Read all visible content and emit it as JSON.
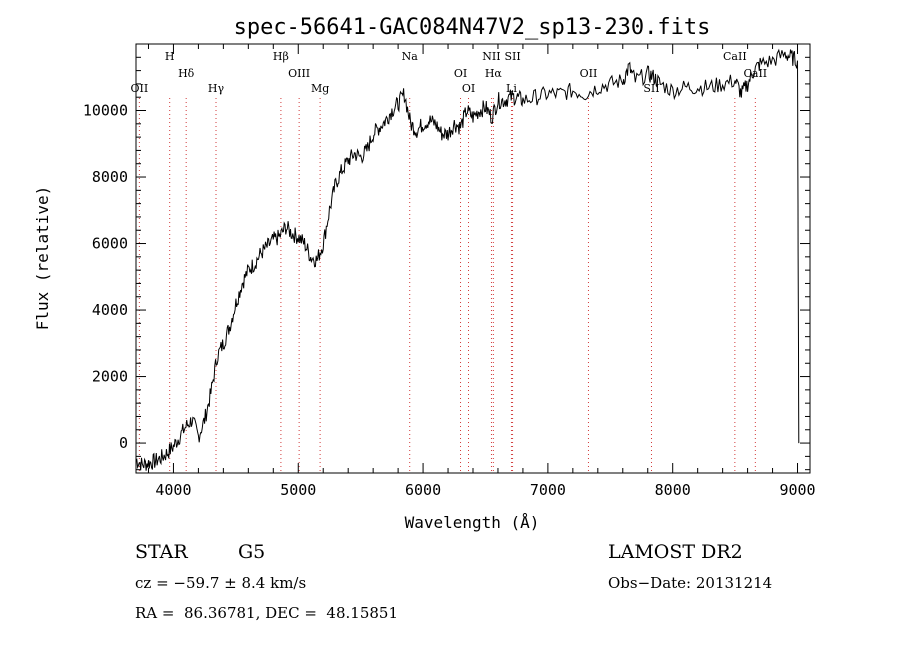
{
  "chart_data": {
    "type": "line",
    "title": "spec-56641-GAC084N47V2_sp13-230.fits",
    "xlabel": "Wavelength (Å)",
    "ylabel": "Flux (relative)",
    "xlim": [
      3700,
      9100
    ],
    "ylim": [
      -900,
      12000
    ],
    "x_ticks": [
      4000,
      5000,
      6000,
      7000,
      8000,
      9000
    ],
    "y_ticks": [
      0,
      2000,
      4000,
      6000,
      8000,
      10000
    ],
    "x_tick_labels": [
      "4000",
      "5000",
      "6000",
      "7000",
      "8000",
      "9000"
    ],
    "y_tick_labels": [
      "0",
      "2000",
      "4000",
      "6000",
      "8000",
      "10000"
    ],
    "series": [
      {
        "x": [
          3700,
          3750,
          3800,
          3850,
          3900,
          3950,
          4000,
          4050,
          4100,
          4150,
          4200,
          4250,
          4300,
          4350,
          4400,
          4450,
          4500,
          4550,
          4600,
          4650,
          4700,
          4750,
          4800,
          4850,
          4900,
          4950,
          5000,
          5050,
          5100,
          5150,
          5200,
          5250,
          5300,
          5350,
          5400,
          5450,
          5500,
          5550,
          5600,
          5650,
          5700,
          5750,
          5800,
          5850,
          5900,
          5950,
          6000,
          6050,
          6100,
          6150,
          6200,
          6250,
          6300,
          6350,
          6400,
          6450,
          6500,
          6550,
          6600,
          6650,
          6700,
          6750,
          6800,
          6900,
          7000,
          7100,
          7200,
          7300,
          7400,
          7500,
          7600,
          7650,
          7700,
          7800,
          7850,
          7900,
          8000,
          8100,
          8200,
          8300,
          8400,
          8500,
          8550,
          8600,
          8650,
          8700,
          8800,
          8900,
          8950,
          9000,
          9010
        ],
        "y": [
          -500,
          -650,
          -600,
          -550,
          -450,
          -300,
          -100,
          200,
          500,
          700,
          200,
          700,
          1500,
          2600,
          3000,
          3500,
          4200,
          4800,
          5200,
          5400,
          5700,
          5900,
          6100,
          6200,
          6500,
          6300,
          6200,
          6000,
          5600,
          5500,
          6000,
          7000,
          7800,
          8200,
          8500,
          8700,
          8600,
          8800,
          9300,
          9500,
          9700,
          10000,
          10200,
          10500,
          9600,
          9400,
          9600,
          9700,
          9600,
          9300,
          9300,
          9600,
          9500,
          10000,
          9800,
          10000,
          10100,
          9800,
          10300,
          10300,
          10400,
          10400,
          10300,
          10400,
          10500,
          10500,
          10600,
          10500,
          10700,
          10800,
          10900,
          11300,
          10900,
          11100,
          11000,
          10800,
          10600,
          10700,
          10700,
          10700,
          10800,
          10900,
          10500,
          10800,
          11200,
          11400,
          11500,
          11700,
          11600,
          11500,
          0
        ]
      }
    ],
    "lines": [
      {
        "label": "OII",
        "x": 3727
      },
      {
        "label": "H",
        "x": 3970
      },
      {
        "label": "Hδ",
        "x": 4102
      },
      {
        "label": "Hγ",
        "x": 4341
      },
      {
        "label": "Hβ",
        "x": 4861
      },
      {
        "label": "OIII",
        "x": 5007
      },
      {
        "label": "Mg",
        "x": 5175
      },
      {
        "label": "Na",
        "x": 5893
      },
      {
        "label": "OI",
        "x": 6300
      },
      {
        "label": "OI",
        "x": 6364
      },
      {
        "label": "NII",
        "x": 6548
      },
      {
        "label": "Hα",
        "x": 6563
      },
      {
        "label": "Li",
        "x": 6708
      },
      {
        "label": "SII",
        "x": 6717
      },
      {
        "label": "OII",
        "x": 7325
      },
      {
        "label": "SII",
        "x": 7830
      },
      {
        "label": "CaII",
        "x": 8498
      },
      {
        "label": "CaII",
        "x": 8662
      }
    ],
    "grid": false
  },
  "info": {
    "class": "STAR",
    "subclass": "G5",
    "release": "LAMOST DR2",
    "cz": "cz = −59.7 ± 8.4 km/s",
    "obs_date": "Obs−Date: 20131214",
    "coords": "RA =  86.36781, DEC =  48.15851"
  }
}
